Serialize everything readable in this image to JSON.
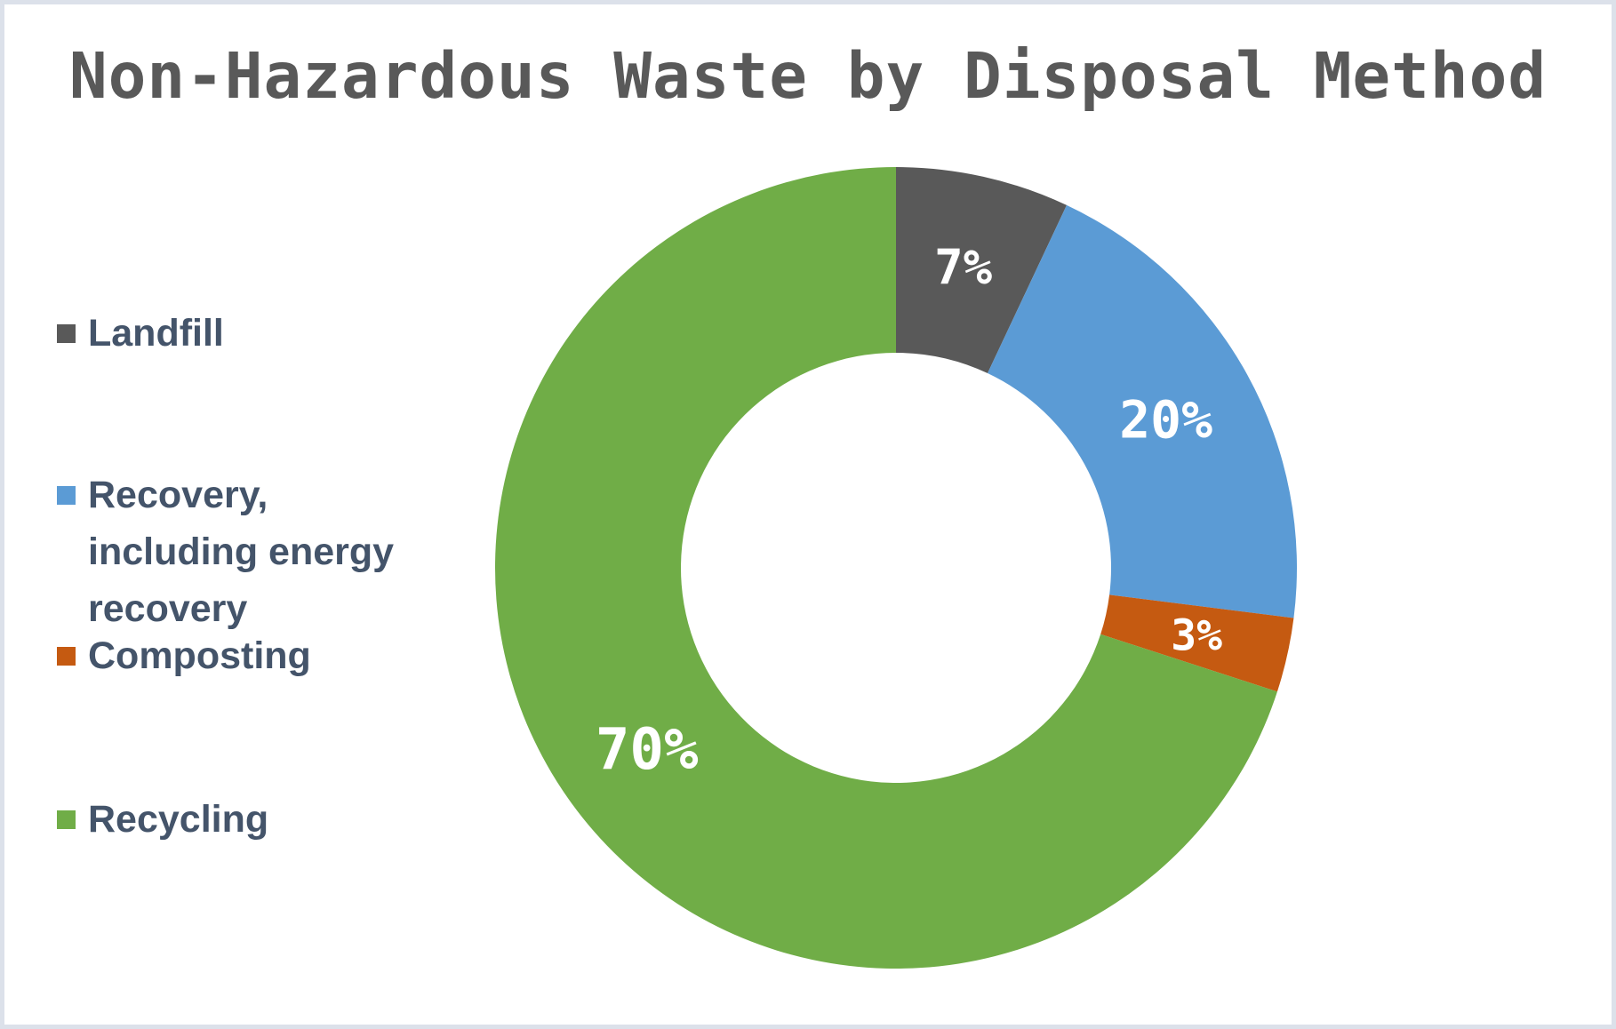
{
  "title": "Non-Hazardous Waste by Disposal Method",
  "chart_data": {
    "type": "pie",
    "subtype": "donut",
    "title": "Non-Hazardous Waste by Disposal Method",
    "unit": "%",
    "start_angle_deg": 0,
    "direction": "clockwise",
    "legend_position": "left",
    "categories": [
      "Landfill",
      "Recovery, including energy recovery",
      "Composting",
      "Recycling"
    ],
    "values": [
      7,
      20,
      3,
      70
    ],
    "slices": [
      {
        "name": "Landfill",
        "value": 7,
        "label": "7%",
        "color": "#595959"
      },
      {
        "name": "Recovery, including energy recovery",
        "value": 20,
        "label": "20%",
        "color": "#5B9BD5"
      },
      {
        "name": "Composting",
        "value": 3,
        "label": "3%",
        "color": "#C55A11"
      },
      {
        "name": "Recycling",
        "value": 70,
        "label": "70%",
        "color": "#70AD47"
      }
    ]
  },
  "legend": {
    "items": [
      {
        "label": "Landfill",
        "color": "#595959"
      },
      {
        "label": "Recovery, including energy recovery",
        "color": "#5B9BD5"
      },
      {
        "label": "Composting",
        "color": "#C55A11"
      },
      {
        "label": "Recycling",
        "color": "#70AD47"
      }
    ]
  },
  "colors": {
    "title_text": "#595959",
    "legend_text": "#44546A",
    "slice_label_text": "#ffffff",
    "background": "#ffffff",
    "border": "#dce1ea"
  }
}
